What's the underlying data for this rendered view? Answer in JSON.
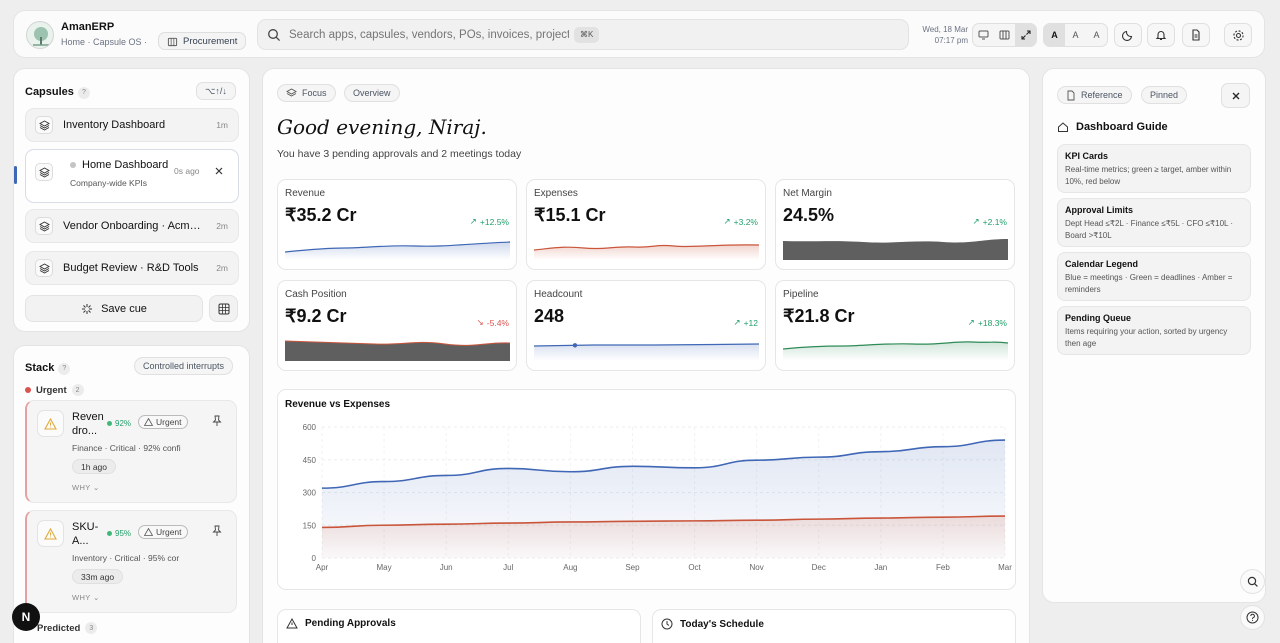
{
  "header": {
    "app_name": "AmanERP",
    "breadcrumb": "Home · Capsule OS ·",
    "module": "Procurement",
    "search_placeholder": "Search apps, capsules, vendors, POs, invoices, projects...",
    "search_shortcut": "⌘K",
    "date": "Wed, 18 Mar",
    "time": "07:17 pm",
    "font_sizes": [
      "A",
      "A",
      "A"
    ]
  },
  "capsules": {
    "title": "Capsules",
    "help": "?",
    "shortcut": "⌥↑/↓",
    "items": [
      {
        "label": "Inventory Dashboard",
        "meta": "1m"
      },
      {
        "label": "Home Dashboard",
        "sub": "Company-wide KPIs",
        "meta": "0s ago"
      },
      {
        "label": "Vendor Onboarding · Acme Supplies",
        "meta": "2m"
      },
      {
        "label": "Budget Review · R&D Tools",
        "meta": "2m"
      }
    ],
    "save_label": "Save cue"
  },
  "stack": {
    "title": "Stack",
    "help": "?",
    "mode": "Controlled interrupts",
    "urgent_label": "Urgent",
    "urgent_count": "2",
    "cards": [
      {
        "title": "Reven dro...",
        "confidence": "92%",
        "badge": "Urgent",
        "meta": "Finance · Critical · 92% confi",
        "time": "1h ago",
        "why": "WHY"
      },
      {
        "title": "SKU-A...",
        "confidence": "95%",
        "badge": "Urgent",
        "meta": "Inventory · Critical · 95% cor",
        "time": "33m ago",
        "why": "WHY"
      }
    ],
    "predicted_label": "Predicted",
    "predicted_count": "3"
  },
  "main": {
    "tabs": [
      "Focus",
      "Overview"
    ],
    "greeting": "Good evening, Niraj.",
    "summary": "You have 3 pending approvals and 2 meetings today",
    "kpis": [
      {
        "label": "Revenue",
        "value": "₹35.2 Cr",
        "change": "+12.5%",
        "trend": "up"
      },
      {
        "label": "Expenses",
        "value": "₹15.1 Cr",
        "change": "+3.2%",
        "trend": "up"
      },
      {
        "label": "Net Margin",
        "value": "24.5%",
        "change": "+2.1%",
        "trend": "up"
      },
      {
        "label": "Cash Position",
        "value": "₹9.2 Cr",
        "change": "-5.4%",
        "trend": "down"
      },
      {
        "label": "Headcount",
        "value": "248",
        "change": "+12",
        "trend": "up"
      },
      {
        "label": "Pipeline",
        "value": "₹21.8 Cr",
        "change": "+18.3%",
        "trend": "up"
      }
    ],
    "pending_title": "Pending Approvals",
    "schedule_title": "Today's Schedule"
  },
  "chart_data": {
    "type": "area",
    "title": "Revenue vs Expenses",
    "categories": [
      "Apr",
      "May",
      "Jun",
      "Jul",
      "Aug",
      "Sep",
      "Oct",
      "Nov",
      "Dec",
      "Jan",
      "Feb",
      "Mar"
    ],
    "ylim": [
      0,
      600
    ],
    "yticks": [
      0,
      150,
      300,
      450,
      600
    ],
    "series": [
      {
        "name": "Revenue",
        "color": "#3f67b5",
        "values": [
          320,
          350,
          378,
          410,
          395,
          420,
          413,
          448,
          462,
          487,
          510,
          540
        ]
      },
      {
        "name": "Expenses",
        "color": "#c9553b",
        "values": [
          140,
          150,
          155,
          160,
          165,
          168,
          170,
          173,
          178,
          183,
          187,
          192
        ]
      }
    ],
    "grid": true,
    "legend": "none"
  },
  "guide": {
    "tabs": [
      "Reference",
      "Pinned"
    ],
    "title": "Dashboard Guide",
    "cards": [
      {
        "title": "KPI Cards",
        "desc": "Real-time metrics; green ≥ target, amber within 10%, red below"
      },
      {
        "title": "Approval Limits",
        "desc": "Dept Head ≤₹2L · Finance ≤₹5L · CFO ≤₹10L · Board >₹10L"
      },
      {
        "title": "Calendar Legend",
        "desc": "Blue = meetings · Green = deadlines · Amber = reminders"
      },
      {
        "title": "Pending Queue",
        "desc": "Items requiring your action, sorted by urgency then age"
      }
    ]
  },
  "fab": {
    "n_label": "N"
  }
}
